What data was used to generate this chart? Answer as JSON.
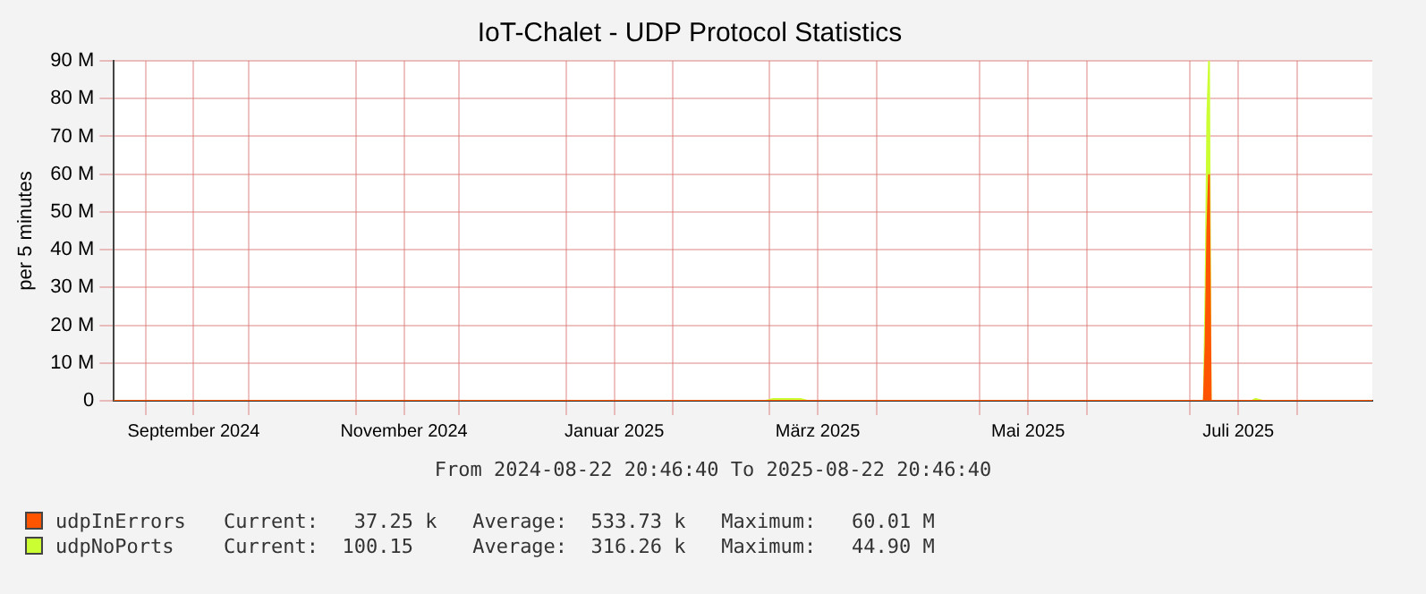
{
  "chart_data": {
    "type": "area",
    "title": "IoT-Chalet - UDP Protocol Statistics",
    "ylabel": "per 5 minutes",
    "stacked": true,
    "grid": true,
    "legend": "bottom left",
    "marker": "none",
    "xlim": [
      "2024-08-22T20:46",
      "2025-08-22T20:46"
    ],
    "xticks": [
      {
        "value": "2024-09-01",
        "label": null
      },
      {
        "value": "2024-09-15",
        "label": "September 2024"
      },
      {
        "value": "2024-10-01",
        "label": null
      },
      {
        "value": "2024-11-01",
        "label": null
      },
      {
        "value": "2024-11-15",
        "label": "November 2024"
      },
      {
        "value": "2024-12-01",
        "label": null
      },
      {
        "value": "2025-01-01",
        "label": null
      },
      {
        "value": "2025-01-15",
        "label": "Januar 2025"
      },
      {
        "value": "2025-02-01",
        "label": null
      },
      {
        "value": "2025-03-01",
        "label": null
      },
      {
        "value": "2025-03-15",
        "label": "März 2025"
      },
      {
        "value": "2025-04-01",
        "label": null
      },
      {
        "value": "2025-05-01",
        "label": null
      },
      {
        "value": "2025-05-15",
        "label": "Mai 2025"
      },
      {
        "value": "2025-06-01",
        "label": null
      },
      {
        "value": "2025-07-01",
        "label": null
      },
      {
        "value": "2025-07-15",
        "label": "Juli 2025"
      },
      {
        "value": "2025-08-01",
        "label": null
      }
    ],
    "ylim": [
      0,
      90
    ],
    "yticks": [
      0,
      {
        "value": 10,
        "label": "10 M"
      },
      {
        "value": 20,
        "label": "20 M"
      },
      {
        "value": 30,
        "label": "30 M"
      },
      {
        "value": 40,
        "label": "40 M"
      },
      {
        "value": 50,
        "label": "50 M"
      },
      {
        "value": 60,
        "label": "60 M"
      },
      {
        "value": 70,
        "label": "70 M"
      },
      {
        "value": 80,
        "label": "80 M"
      },
      {
        "value": 90,
        "label": "90 M"
      }
    ],
    "series": [
      {
        "name": "udpInErrors",
        "color": "#ff5500",
        "values": [
          0,
          0,
          0,
          0,
          0,
          0,
          0,
          15,
          45,
          60,
          0,
          0,
          0,
          0,
          0,
          0,
          0
        ]
      },
      {
        "name": "udpNoPorts",
        "color": "#ccff33",
        "values": [
          0,
          0,
          0.5,
          0.5,
          0,
          0,
          0,
          15,
          30,
          30,
          0,
          0,
          0,
          0,
          0.5,
          0,
          0
        ]
      }
    ],
    "x": [
      "2024-08-22T20:46",
      "2025-02-28",
      "2025-03-02",
      "2025-03-10",
      "2025-03-12",
      "2025-07-04",
      "2025-07-05",
      "2025-07-05T12:00",
      "2025-07-06",
      "2025-07-06T12:00",
      "2025-07-07",
      "2025-07-07T12:00",
      "2025-07-08",
      "2025-07-19",
      "2025-07-20",
      "2025-07-22",
      "2025-08-22T20:46"
    ],
    "annotations": [
      "From 2024-08-22 20:46:40 To 2025-08-22 20:46:40",
      "Current:   37.25 k   Average:  533.73 k   Maximum:   60.01 M",
      "Current:  100.15     Average:  316.26 k   Maximum:   44.90 M"
    ]
  }
}
